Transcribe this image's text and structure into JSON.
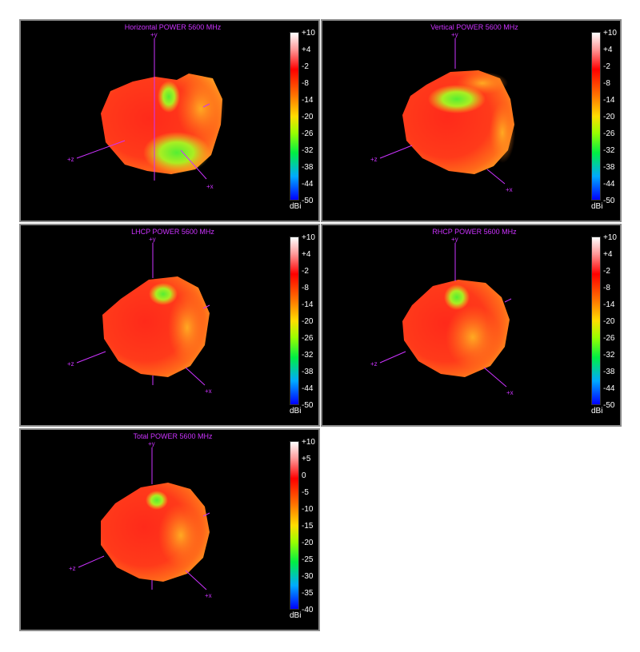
{
  "colorbar_colors": [
    "#ffffff",
    "#ff8080",
    "#ff0000",
    "#ff6600",
    "#ffcc00",
    "#99ff00",
    "#00ff33",
    "#00ccff",
    "#0000ff"
  ],
  "panels": [
    {
      "title": "Horizontal POWER 5600  MHz",
      "unit": "dBi",
      "ticks": [
        "+10",
        "+4",
        "-2",
        "-8",
        "-14",
        "-20",
        "-26",
        "-32",
        "-38",
        "-44",
        "-50"
      ],
      "axes": {
        "y": "+y",
        "z": "+z",
        "x": "+x"
      }
    },
    {
      "title": "Vertical POWER 5600  MHz",
      "unit": "dBi",
      "ticks": [
        "+10",
        "+4",
        "-2",
        "-8",
        "-14",
        "-20",
        "-26",
        "-32",
        "-38",
        "-44",
        "-50"
      ],
      "axes": {
        "y": "+y",
        "z": "+z",
        "x": "+x"
      }
    },
    {
      "title": "LHCP POWER 5600  MHz",
      "unit": "dBi",
      "ticks": [
        "+10",
        "+4",
        "-2",
        "-8",
        "-14",
        "-20",
        "-26",
        "-32",
        "-38",
        "-44",
        "-50"
      ],
      "axes": {
        "y": "+y",
        "z": "+z",
        "x": "+x"
      }
    },
    {
      "title": "RHCP POWER 5600  MHz",
      "unit": "dBi",
      "ticks": [
        "+10",
        "+4",
        "-2",
        "-8",
        "-14",
        "-20",
        "-26",
        "-32",
        "-38",
        "-44",
        "-50"
      ],
      "axes": {
        "y": "+y",
        "z": "+z",
        "x": "+x"
      }
    },
    {
      "title": "Total POWER 5600  MHz",
      "unit": "dBi",
      "ticks": [
        "+10",
        "+5",
        "0",
        "-5",
        "-10",
        "-15",
        "-20",
        "-25",
        "-30",
        "-35",
        "-40"
      ],
      "axes": {
        "y": "+y",
        "z": "+z",
        "x": "+x"
      }
    }
  ]
}
